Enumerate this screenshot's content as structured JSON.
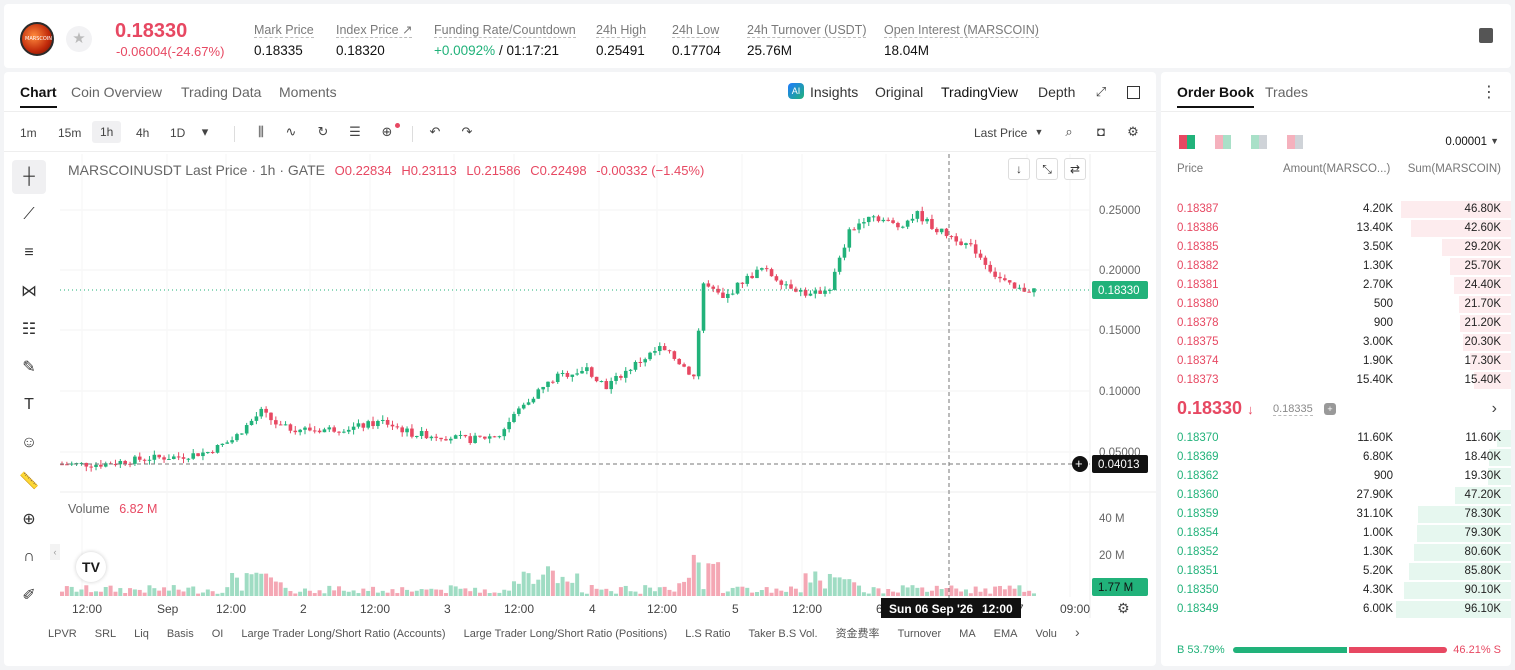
{
  "header": {
    "last_price": "0.18330",
    "change": "-0.06004(-24.67%)",
    "logo_text": "MARSCOIN",
    "stats": [
      {
        "label": "Mark Price",
        "value": "0.18335"
      },
      {
        "label": "Index Price ↗",
        "value": "0.18320"
      },
      {
        "label": "Funding Rate/Countdown",
        "value_green": "+0.0092%",
        "value": "/ 01:17:21"
      },
      {
        "label": "24h High",
        "value": "0.25491"
      },
      {
        "label": "24h Low",
        "value": "0.17704"
      },
      {
        "label": "24h Turnover (USDT)",
        "value": "25.76M"
      },
      {
        "label": "Open Interest (MARSCOIN)",
        "value": "18.04M"
      }
    ]
  },
  "chart_tabs": [
    "Chart",
    "Coin Overview",
    "Trading Data",
    "Moments"
  ],
  "view_tabs": [
    "Insights",
    "Original",
    "TradingView",
    "Depth"
  ],
  "timeframes": [
    "1m",
    "15m",
    "1h",
    "4h",
    "1D"
  ],
  "price_type": "Last Price",
  "legend": {
    "symbol": "MARSCOINUSDT Last Price · 1h · GATE",
    "o": "O0.22834",
    "h": "H0.23113",
    "l": "L0.21586",
    "c": "C0.22498",
    "chg": "-0.00332 (−1.45%)"
  },
  "volume": {
    "label": "Volume",
    "value": "6.82 M",
    "ticks": [
      "40 M",
      "20 M"
    ],
    "current": "1.77 M"
  },
  "price_axis": [
    "0.25000",
    "0.20000",
    "0.15000",
    "0.10000",
    "0.05000"
  ],
  "price_labels": {
    "last": "0.18330",
    "cross": "0.04013"
  },
  "time_axis": [
    "12:00",
    "Sep",
    "12:00",
    "2",
    "12:00",
    "3",
    "12:00",
    "4",
    "12:00",
    "5",
    "12:00",
    "6",
    "7",
    "09:00"
  ],
  "crosshair_time": "Sun 06 Sep '26",
  "crosshair_hour": "12:00",
  "indicators": [
    "LPVR",
    "SRL",
    "Liq",
    "Basis",
    "OI",
    "Large Trader Long/Short Ratio (Accounts)",
    "Large Trader Long/Short Ratio (Positions)",
    "L.S Ratio",
    "Taker B.S Vol.",
    "资金费率",
    "Turnover",
    "MA",
    "EMA",
    "Volu"
  ],
  "orderbook": {
    "tabs": [
      "Order Book",
      "Trades"
    ],
    "precision": "0.00001",
    "headers": [
      "Price",
      "Amount(MARSCO...)",
      "Sum(MARSCOIN)"
    ],
    "asks": [
      {
        "price": "0.18387",
        "amount": "4.20K",
        "sum": "46.80K",
        "depth": 0.96
      },
      {
        "price": "0.18386",
        "amount": "13.40K",
        "sum": "42.60K",
        "depth": 0.87
      },
      {
        "price": "0.18385",
        "amount": "3.50K",
        "sum": "29.20K",
        "depth": 0.6
      },
      {
        "price": "0.18382",
        "amount": "1.30K",
        "sum": "25.70K",
        "depth": 0.53
      },
      {
        "price": "0.18381",
        "amount": "2.70K",
        "sum": "24.40K",
        "depth": 0.5
      },
      {
        "price": "0.18380",
        "amount": "500",
        "sum": "21.70K",
        "depth": 0.45
      },
      {
        "price": "0.18378",
        "amount": "900",
        "sum": "21.20K",
        "depth": 0.44
      },
      {
        "price": "0.18375",
        "amount": "3.00K",
        "sum": "20.30K",
        "depth": 0.42
      },
      {
        "price": "0.18374",
        "amount": "1.90K",
        "sum": "17.30K",
        "depth": 0.36
      },
      {
        "price": "0.18373",
        "amount": "15.40K",
        "sum": "15.40K",
        "depth": 0.32
      }
    ],
    "mid_price": "0.18330",
    "mark": "0.18335",
    "bids": [
      {
        "price": "0.18370",
        "amount": "11.60K",
        "sum": "11.60K",
        "depth": 0.12
      },
      {
        "price": "0.18369",
        "amount": "6.80K",
        "sum": "18.40K",
        "depth": 0.19
      },
      {
        "price": "0.18362",
        "amount": "900",
        "sum": "19.30K",
        "depth": 0.2
      },
      {
        "price": "0.18360",
        "amount": "27.90K",
        "sum": "47.20K",
        "depth": 0.49
      },
      {
        "price": "0.18359",
        "amount": "31.10K",
        "sum": "78.30K",
        "depth": 0.81
      },
      {
        "price": "0.18354",
        "amount": "1.00K",
        "sum": "79.30K",
        "depth": 0.82
      },
      {
        "price": "0.18352",
        "amount": "1.30K",
        "sum": "80.60K",
        "depth": 0.84
      },
      {
        "price": "0.18351",
        "amount": "5.20K",
        "sum": "85.80K",
        "depth": 0.89
      },
      {
        "price": "0.18350",
        "amount": "4.30K",
        "sum": "90.10K",
        "depth": 0.93
      },
      {
        "price": "0.18349",
        "amount": "6.00K",
        "sum": "96.10K",
        "depth": 1.0
      }
    ],
    "buy_ratio": "B 53.79%",
    "sell_ratio": "46.21% S",
    "buy_fraction": 0.5379
  },
  "colors": {
    "up": "#21b27a",
    "down": "#e74862"
  }
}
